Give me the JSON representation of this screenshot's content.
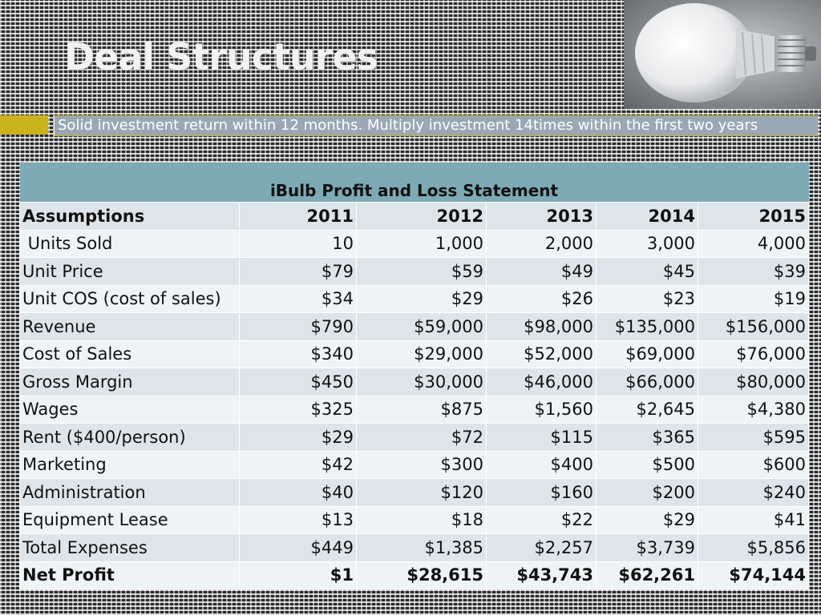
{
  "slide": {
    "title": "Deal Structures",
    "subtitle": "Solid investment return within 12 months. Multiply investment 14times within the first two years",
    "accent_color": "#c9b21b",
    "header_color": "#7eaab5"
  },
  "table": {
    "caption": "iBulb Profit and Loss Statement",
    "header": [
      "Assumptions",
      "2011",
      "2012",
      "2013",
      "2014",
      "2015"
    ],
    "rows": [
      [
        " Units Sold",
        "10",
        "1,000",
        "2,000",
        "3,000",
        "4,000"
      ],
      [
        "Unit Price",
        "$79",
        "$59",
        "$49",
        "$45",
        "$39"
      ],
      [
        "Unit COS (cost of sales)",
        "$34",
        "$29",
        "$26",
        "$23",
        "$19"
      ],
      [
        "Revenue",
        "$790",
        "$59,000",
        "$98,000",
        "$135,000",
        "$156,000"
      ],
      [
        "Cost of Sales",
        "$340",
        "$29,000",
        "$52,000",
        "$69,000",
        "$76,000"
      ],
      [
        "Gross Margin",
        "$450",
        "$30,000",
        "$46,000",
        "$66,000",
        "$80,000"
      ],
      [
        "Wages",
        "$325",
        "$875",
        "$1,560",
        "$2,645",
        "$4,380"
      ],
      [
        "Rent ($400/person)",
        "$29",
        "$72",
        "$115",
        "$365",
        "$595"
      ],
      [
        "Marketing",
        "$42",
        "$300",
        "$400",
        "$500",
        "$600"
      ],
      [
        "Administration",
        "$40",
        "$120",
        "$160",
        "$200",
        "$240"
      ],
      [
        "Equipment Lease",
        "$13",
        "$18",
        "$22",
        "$29",
        "$41"
      ],
      [
        "Total Expenses",
        "$449",
        "$1,385",
        "$2,257",
        "$3,739",
        "$5,856"
      ],
      [
        "Net Profit",
        "$1",
        "$28,615",
        "$43,743",
        "$62,261",
        "$74,144"
      ]
    ]
  }
}
